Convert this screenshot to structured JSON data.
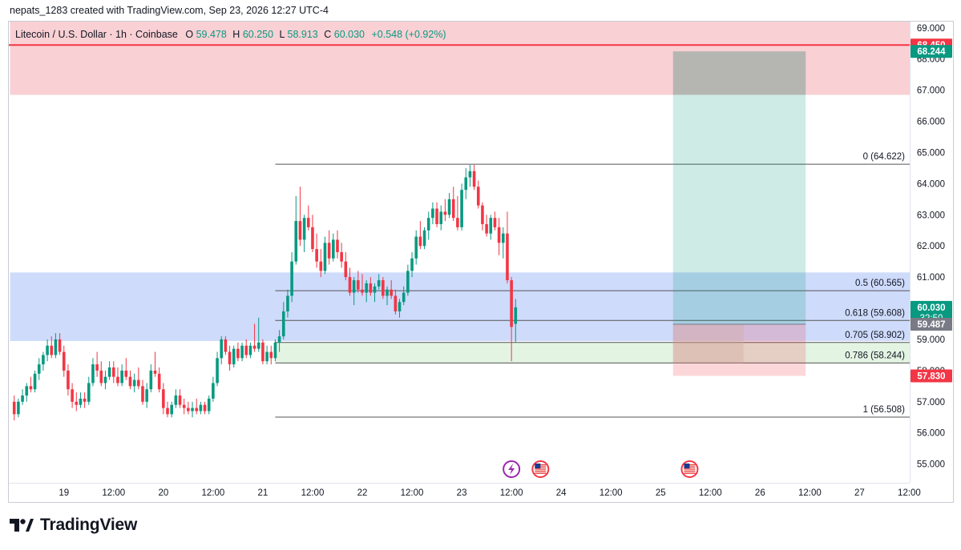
{
  "credit": "nepats_1283 created with TradingView.com, Sep 23, 2026 12:27 UTC-4",
  "brand": {
    "name": "TradingView",
    "logo_icon": "tradingview-logo-icon"
  },
  "colors": {
    "up": "#089981",
    "down": "#f23645",
    "fib_line": "#555555",
    "resistance_zone": "#f9d0d4",
    "support_zone": "#c5d5fa",
    "entry_zone": "#e3f4e3",
    "target_zone": "#cdece4",
    "stop_zone": "#f9d3d7"
  },
  "chart_data": {
    "type": "candlestick",
    "symbol": "Litecoin / U.S. Dollar · 1h · Coinbase",
    "ohlc_header": {
      "o_label": "O",
      "o": "59.478",
      "h_label": "H",
      "h": "60.250",
      "l_label": "L",
      "l": "58.913",
      "c_label": "C",
      "c": "60.030",
      "change": "+0.548 (+0.92%)"
    },
    "ylim": [
      54.4,
      69.2
    ],
    "y_ticks": [
      55,
      56,
      57,
      58,
      59,
      60,
      61,
      62,
      63,
      64,
      65,
      66,
      67,
      68,
      69
    ],
    "y_tick_labels": [
      "55.000",
      "56.000",
      "57.000",
      "58.000",
      "59.000",
      "60.000",
      "61.000",
      "62.000",
      "63.000",
      "64.000",
      "65.000",
      "66.000",
      "67.000",
      "68.000",
      "69.000"
    ],
    "x_ticks": [
      {
        "label": "19",
        "t": 12
      },
      {
        "label": "12:00",
        "t": 24
      },
      {
        "label": "20",
        "t": 36
      },
      {
        "label": "12:00",
        "t": 48
      },
      {
        "label": "21",
        "t": 60
      },
      {
        "label": "12:00",
        "t": 72
      },
      {
        "label": "22",
        "t": 84
      },
      {
        "label": "12:00",
        "t": 96
      },
      {
        "label": "23",
        "t": 108
      },
      {
        "label": "12:00",
        "t": 120
      },
      {
        "label": "24",
        "t": 132
      },
      {
        "label": "12:00",
        "t": 144
      },
      {
        "label": "25",
        "t": 156
      },
      {
        "label": "12:00",
        "t": 168
      },
      {
        "label": "26",
        "t": 180
      },
      {
        "label": "12:00",
        "t": 192
      },
      {
        "label": "27",
        "t": 204
      },
      {
        "label": "12:00",
        "t": 216
      }
    ],
    "fib_levels": [
      {
        "label": "0 (64.622)",
        "price": 64.622
      },
      {
        "label": "0.5 (60.565)",
        "price": 60.565
      },
      {
        "label": "0.618 (59.608)",
        "price": 59.608
      },
      {
        "label": "0.705 (58.902)",
        "price": 58.902
      },
      {
        "label": "0.786 (58.244)",
        "price": 58.244
      },
      {
        "label": "1 (56.508)",
        "price": 56.508
      }
    ],
    "fib_range_t": [
      63,
      218
    ],
    "price_badges": [
      {
        "label": "68.450",
        "price": 68.45,
        "color": "#f23645"
      },
      {
        "label": "68.244",
        "price": 68.244,
        "color": "#089981"
      },
      {
        "label": "60.030",
        "sub": "32:50",
        "price": 60.03,
        "color": "#089981"
      },
      {
        "label": "59.487",
        "price": 59.487,
        "color": "#787b86"
      },
      {
        "label": "57.830",
        "price": 57.83,
        "color": "#f23645"
      }
    ],
    "resistance_line": 68.45,
    "zones": [
      {
        "name": "resistance-zone",
        "from": 66.85,
        "to": 69.2,
        "t0": -1,
        "t1": 218,
        "color": "#f9d0d4"
      },
      {
        "name": "support-zone",
        "from": 58.95,
        "to": 61.15,
        "t0": -1,
        "t1": 218,
        "color": "#c5d5fa"
      },
      {
        "name": "entry-zone",
        "from": 58.244,
        "to": 58.902,
        "t0": 63,
        "t1": 218,
        "color": "#e3f4e3"
      }
    ],
    "position": {
      "t0": 159,
      "t1": 191,
      "entry": 59.487,
      "target": 68.244,
      "stop": 57.83,
      "entry_marker_t": 176
    },
    "events": [
      {
        "t": 120,
        "kind": "flash-event-icon"
      },
      {
        "t": 127,
        "kind": "us-flag-icon"
      },
      {
        "t": 163,
        "kind": "us-flag-icon"
      }
    ],
    "candles": [
      [
        57.0,
        57.2,
        56.4,
        56.6
      ],
      [
        56.6,
        57.1,
        56.5,
        57.0
      ],
      [
        57.0,
        57.4,
        56.9,
        57.2
      ],
      [
        57.2,
        57.6,
        57.0,
        57.5
      ],
      [
        57.5,
        57.8,
        57.3,
        57.4
      ],
      [
        57.4,
        58.0,
        57.3,
        57.9
      ],
      [
        57.9,
        58.4,
        57.7,
        58.2
      ],
      [
        58.2,
        58.6,
        58.0,
        58.5
      ],
      [
        58.5,
        59.0,
        58.3,
        58.8
      ],
      [
        58.8,
        59.1,
        58.4,
        58.5
      ],
      [
        58.5,
        59.2,
        58.4,
        59.0
      ],
      [
        59.0,
        59.2,
        58.5,
        58.6
      ],
      [
        58.6,
        58.8,
        57.8,
        58.0
      ],
      [
        58.0,
        58.2,
        57.2,
        57.4
      ],
      [
        57.4,
        57.6,
        56.8,
        57.0
      ],
      [
        57.0,
        57.3,
        56.7,
        56.9
      ],
      [
        56.9,
        57.3,
        56.8,
        57.1
      ],
      [
        57.1,
        57.3,
        56.8,
        57.0
      ],
      [
        57.0,
        57.8,
        56.9,
        57.6
      ],
      [
        57.6,
        58.4,
        57.5,
        58.2
      ],
      [
        58.2,
        58.6,
        57.8,
        58.0
      ],
      [
        58.0,
        58.3,
        57.5,
        57.6
      ],
      [
        57.6,
        58.0,
        57.4,
        57.8
      ],
      [
        57.8,
        58.3,
        57.7,
        58.1
      ],
      [
        58.1,
        58.3,
        57.6,
        57.8
      ],
      [
        57.8,
        58.1,
        57.5,
        57.6
      ],
      [
        57.6,
        58.2,
        57.5,
        58.0
      ],
      [
        58.0,
        58.4,
        57.7,
        57.8
      ],
      [
        57.8,
        58.0,
        57.4,
        57.5
      ],
      [
        57.5,
        57.9,
        57.3,
        57.7
      ],
      [
        57.7,
        58.1,
        57.4,
        57.5
      ],
      [
        57.5,
        57.7,
        56.9,
        57.0
      ],
      [
        57.0,
        57.6,
        56.8,
        57.4
      ],
      [
        57.4,
        58.2,
        57.3,
        58.0
      ],
      [
        58.0,
        58.6,
        57.8,
        57.9
      ],
      [
        57.9,
        58.1,
        57.3,
        57.4
      ],
      [
        57.4,
        57.6,
        56.6,
        56.8
      ],
      [
        56.8,
        57.0,
        56.5,
        56.6
      ],
      [
        56.6,
        57.0,
        56.5,
        56.9
      ],
      [
        56.9,
        57.4,
        56.8,
        57.2
      ],
      [
        57.2,
        57.4,
        56.8,
        56.9
      ],
      [
        56.9,
        57.1,
        56.6,
        56.8
      ],
      [
        56.8,
        57.0,
        56.6,
        56.7
      ],
      [
        56.7,
        57.0,
        56.5,
        56.8
      ],
      [
        56.8,
        57.1,
        56.6,
        56.7
      ],
      [
        56.7,
        57.0,
        56.6,
        56.9
      ],
      [
        56.9,
        57.0,
        56.6,
        56.7
      ],
      [
        56.7,
        57.2,
        56.6,
        57.1
      ],
      [
        57.1,
        57.8,
        57.0,
        57.6
      ],
      [
        57.6,
        58.6,
        57.5,
        58.4
      ],
      [
        58.4,
        59.1,
        58.2,
        59.0
      ],
      [
        59.0,
        59.1,
        58.5,
        58.6
      ],
      [
        58.6,
        58.8,
        58.0,
        58.2
      ],
      [
        58.2,
        58.8,
        58.1,
        58.7
      ],
      [
        58.7,
        58.9,
        58.3,
        58.4
      ],
      [
        58.4,
        58.9,
        58.3,
        58.8
      ],
      [
        58.8,
        59.0,
        58.4,
        58.5
      ],
      [
        58.5,
        58.9,
        58.4,
        58.8
      ],
      [
        58.8,
        59.5,
        58.6,
        58.7
      ],
      [
        58.7,
        59.7,
        58.6,
        58.9
      ],
      [
        58.9,
        59.0,
        58.2,
        58.3
      ],
      [
        58.3,
        58.8,
        58.2,
        58.6
      ],
      [
        58.6,
        58.8,
        58.2,
        58.4
      ],
      [
        58.4,
        59.0,
        58.3,
        58.9
      ],
      [
        58.9,
        59.3,
        58.6,
        59.1
      ],
      [
        59.1,
        60.2,
        59.0,
        59.9
      ],
      [
        59.9,
        60.6,
        59.7,
        60.4
      ],
      [
        60.4,
        61.8,
        60.2,
        61.5
      ],
      [
        61.5,
        63.6,
        61.4,
        62.8
      ],
      [
        62.8,
        63.9,
        62.0,
        62.2
      ],
      [
        62.2,
        63.0,
        61.8,
        62.9
      ],
      [
        62.9,
        63.3,
        62.5,
        62.6
      ],
      [
        62.6,
        63.0,
        61.8,
        61.9
      ],
      [
        61.9,
        62.4,
        61.3,
        61.5
      ],
      [
        61.5,
        61.9,
        61.0,
        61.2
      ],
      [
        61.2,
        62.3,
        61.1,
        62.1
      ],
      [
        62.1,
        62.5,
        61.4,
        61.6
      ],
      [
        61.6,
        62.4,
        61.5,
        62.2
      ],
      [
        62.2,
        62.5,
        61.6,
        61.8
      ],
      [
        61.8,
        62.1,
        61.3,
        61.5
      ],
      [
        61.5,
        61.8,
        60.9,
        61.0
      ],
      [
        61.0,
        61.3,
        60.4,
        60.5
      ],
      [
        60.5,
        61.0,
        60.1,
        60.9
      ],
      [
        60.9,
        61.2,
        60.5,
        60.6
      ],
      [
        60.6,
        61.1,
        60.4,
        60.5
      ],
      [
        60.5,
        60.9,
        60.2,
        60.8
      ],
      [
        60.8,
        61.0,
        60.4,
        60.5
      ],
      [
        60.5,
        60.8,
        60.2,
        60.7
      ],
      [
        60.7,
        61.1,
        60.6,
        60.9
      ],
      [
        60.9,
        61.0,
        60.3,
        60.4
      ],
      [
        60.4,
        60.7,
        60.1,
        60.6
      ],
      [
        60.6,
        60.9,
        60.3,
        60.4
      ],
      [
        60.4,
        60.6,
        59.8,
        59.9
      ],
      [
        59.9,
        60.3,
        59.7,
        60.2
      ],
      [
        60.2,
        60.7,
        60.1,
        60.5
      ],
      [
        60.5,
        61.4,
        60.4,
        61.2
      ],
      [
        61.2,
        61.8,
        61.0,
        61.6
      ],
      [
        61.6,
        62.5,
        61.4,
        62.3
      ],
      [
        62.3,
        62.8,
        61.9,
        62.0
      ],
      [
        62.0,
        62.6,
        61.9,
        62.5
      ],
      [
        62.5,
        63.1,
        62.2,
        62.9
      ],
      [
        62.9,
        63.4,
        62.7,
        63.2
      ],
      [
        63.2,
        63.4,
        62.6,
        62.7
      ],
      [
        62.7,
        63.3,
        62.5,
        63.1
      ],
      [
        63.1,
        63.5,
        62.8,
        63.0
      ],
      [
        63.0,
        63.7,
        62.9,
        63.5
      ],
      [
        63.5,
        63.9,
        62.8,
        62.9
      ],
      [
        62.9,
        63.6,
        62.5,
        62.6
      ],
      [
        62.6,
        64.0,
        62.5,
        63.8
      ],
      [
        63.8,
        64.5,
        63.5,
        64.2
      ],
      [
        64.2,
        64.6,
        63.9,
        64.4
      ],
      [
        64.4,
        64.6,
        63.8,
        63.9
      ],
      [
        63.9,
        64.1,
        63.2,
        63.3
      ],
      [
        63.3,
        63.4,
        62.5,
        62.7
      ],
      [
        62.7,
        63.0,
        62.3,
        62.4
      ],
      [
        62.4,
        63.0,
        62.2,
        62.9
      ],
      [
        62.9,
        63.1,
        62.5,
        62.6
      ],
      [
        62.6,
        62.9,
        61.7,
        62.1
      ],
      [
        62.1,
        62.6,
        61.6,
        62.4
      ],
      [
        62.4,
        63.1,
        60.8,
        60.9
      ],
      [
        60.9,
        61.0,
        58.3,
        59.4
      ],
      [
        59.5,
        60.3,
        58.9,
        60.03
      ]
    ]
  }
}
